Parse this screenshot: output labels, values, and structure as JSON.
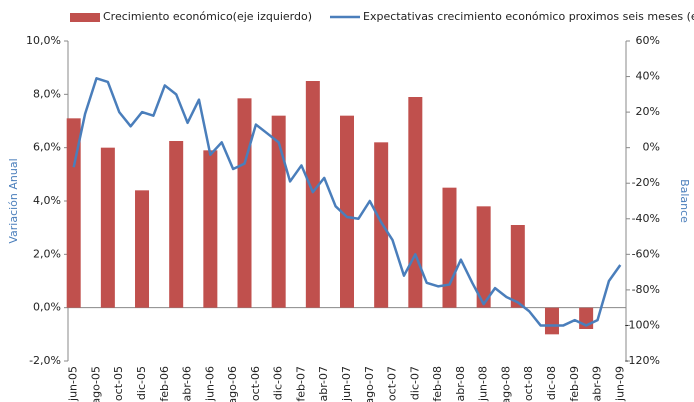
{
  "chart_data": {
    "type": "bar_line",
    "categories": [
      "jun-05",
      null,
      "ago-05",
      null,
      "oct-05",
      null,
      "dic-05",
      null,
      "feb-06",
      null,
      "abr-06",
      null,
      "jun-06",
      null,
      "ago-06",
      null,
      "oct-06",
      null,
      "dic-06",
      null,
      "feb-07",
      null,
      "abr-07",
      null,
      "jun-07",
      null,
      "ago-07",
      null,
      "oct-07",
      null,
      "dic-07",
      null,
      "feb-08",
      null,
      "abr-08",
      null,
      "jun-08",
      null,
      "ago-08",
      null,
      "oct-08",
      null,
      "dic-08",
      null,
      "feb-09",
      null,
      "abr-09",
      null,
      "jun-09"
    ],
    "series": [
      {
        "name": "Crecimiento económico(eje izquierdo)",
        "color": "#c0504d",
        "kind": "bar",
        "values": [
          7.1,
          null,
          null,
          6.0,
          null,
          null,
          4.4,
          null,
          null,
          6.25,
          null,
          null,
          5.9,
          null,
          null,
          7.85,
          null,
          null,
          7.2,
          null,
          null,
          8.5,
          null,
          null,
          7.2,
          null,
          null,
          6.2,
          null,
          null,
          7.9,
          null,
          null,
          4.5,
          null,
          null,
          3.8,
          null,
          null,
          3.1,
          null,
          null,
          -1.0,
          null,
          null,
          -0.8,
          null,
          null,
          null
        ]
      },
      {
        "name": "Expectativas crecimiento económico proximos seis meses (eje derecho)",
        "color": "#4a7ebb",
        "kind": "line",
        "axis": "y2",
        "values": [
          -11,
          19,
          39,
          37,
          20,
          12,
          20,
          18,
          35,
          30,
          14,
          27,
          -4,
          3,
          -12,
          -9,
          13,
          8,
          3,
          -19,
          -10,
          -25,
          -17,
          -33,
          -39,
          -40,
          -30,
          -42,
          -52,
          -72,
          -60,
          -76,
          -78,
          -77,
          -63,
          -76,
          -88,
          -79,
          -84,
          -87,
          -92,
          -100,
          -100,
          -100,
          -97,
          -100,
          -97,
          -75,
          -66
        ]
      }
    ],
    "y_label": "Variación Anual",
    "y2_label": "Balance",
    "ylim": [
      -2,
      10
    ],
    "yticks": [
      {
        "value": -2,
        "label": "-2,0%"
      },
      {
        "value": 0,
        "label": "0,0%"
      },
      {
        "value": 2,
        "label": "2,0%"
      },
      {
        "value": 4,
        "label": "4,0%"
      },
      {
        "value": 6,
        "label": "6,0%"
      },
      {
        "value": 8,
        "label": "8,0%"
      },
      {
        "value": 10,
        "label": "10,0%"
      }
    ],
    "y2lim": [
      -120,
      60
    ],
    "y2ticks": [
      {
        "value": -120,
        "label": "-120%"
      },
      {
        "value": -100,
        "label": "-100%"
      },
      {
        "value": -80,
        "label": "-80%"
      },
      {
        "value": -60,
        "label": "-60%"
      },
      {
        "value": -40,
        "label": "-40%"
      },
      {
        "value": -20,
        "label": "-20%"
      },
      {
        "value": 0,
        "label": "0%"
      },
      {
        "value": 20,
        "label": "20%"
      },
      {
        "value": 40,
        "label": "40%"
      },
      {
        "value": 60,
        "label": "60%"
      }
    ],
    "legend": "top"
  }
}
